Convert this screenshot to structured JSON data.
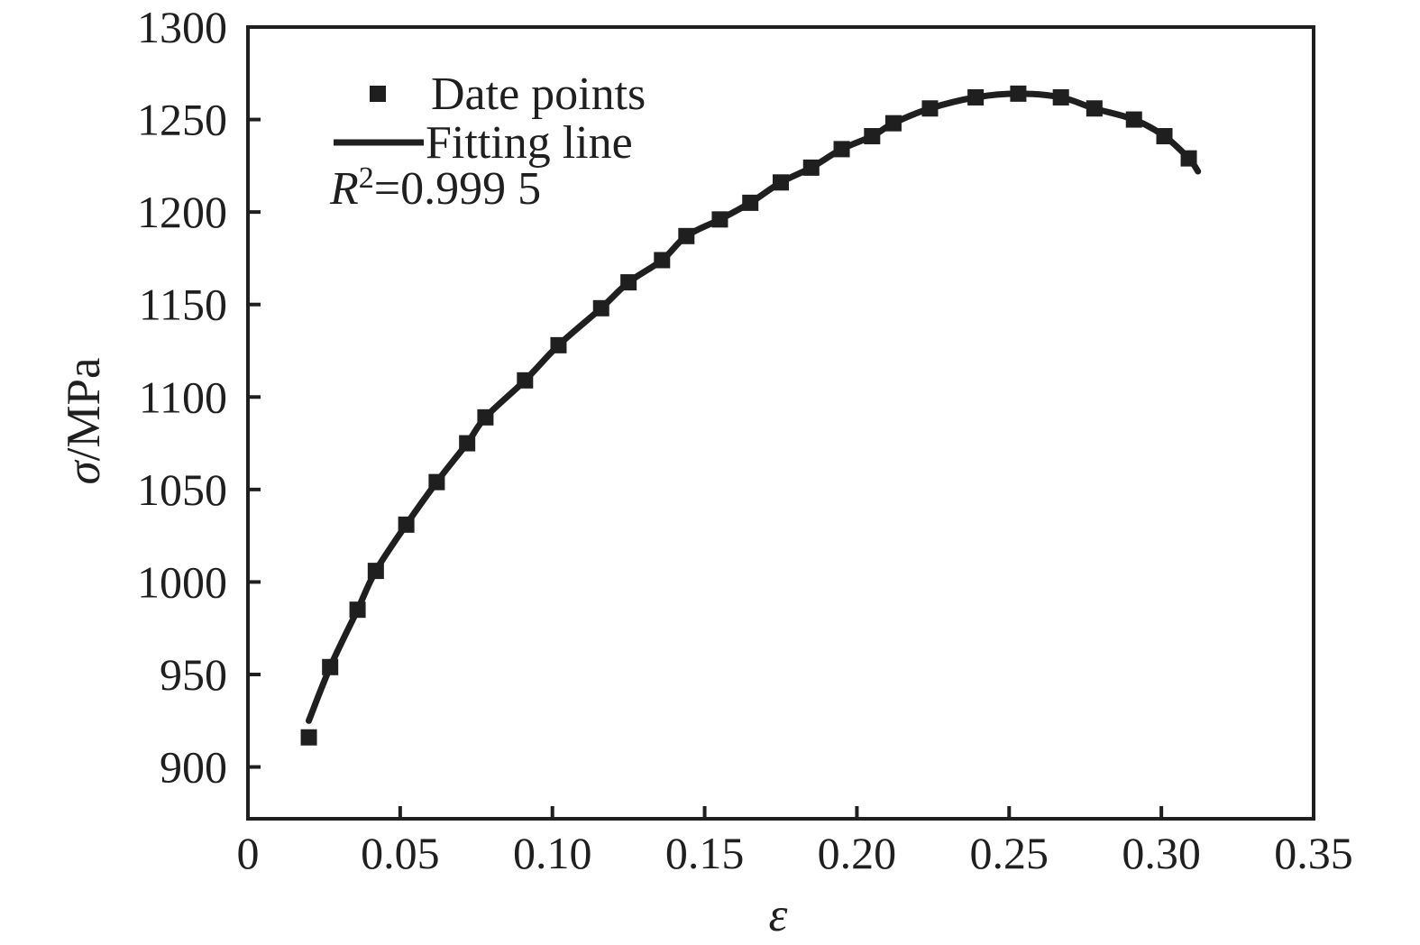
{
  "figure": {
    "background": "#ffffff",
    "ink_color": "#1f1f1f"
  },
  "legend": {
    "points_label": "Date points",
    "line_label": "Fitting line",
    "r_squared": {
      "base": "R",
      "exponent": "2",
      "value": "=0.999 5"
    }
  },
  "chart_data": {
    "type": "scatter",
    "title": "",
    "xlabel": "ε",
    "ylabel": "σ/MPa",
    "ylabel_parts": {
      "symbol": "σ",
      "unit": "/MPa"
    },
    "xlim": [
      0,
      0.35
    ],
    "ylim": [
      872,
      1300
    ],
    "grid": false,
    "legend_position": "top-left-inside",
    "x_ticks": {
      "values": [
        0,
        0.05,
        0.1,
        0.15,
        0.2,
        0.25,
        0.3,
        0.35
      ],
      "labels": [
        "0",
        "0.05",
        "0.10",
        "0.15",
        "0.20",
        "0.25",
        "0.30",
        "0.35"
      ]
    },
    "y_ticks": {
      "values": [
        900,
        950,
        1000,
        1050,
        1100,
        1150,
        1200,
        1250,
        1300
      ],
      "labels": [
        "900",
        "950",
        "1000",
        "1050",
        "1100",
        "1150",
        "1200",
        "1250",
        "1300"
      ]
    },
    "annotation": "R²=0.999 5",
    "series": [
      {
        "name": "Date points",
        "type": "scatter",
        "marker": "square",
        "color": "#1f1f1f",
        "points": [
          [
            0.02,
            916
          ],
          [
            0.027,
            954
          ],
          [
            0.036,
            985
          ],
          [
            0.042,
            1006
          ],
          [
            0.052,
            1031
          ],
          [
            0.062,
            1054
          ],
          [
            0.072,
            1075
          ],
          [
            0.078,
            1089
          ],
          [
            0.091,
            1109
          ],
          [
            0.102,
            1128
          ],
          [
            0.116,
            1148
          ],
          [
            0.125,
            1162
          ],
          [
            0.136,
            1174
          ],
          [
            0.144,
            1187
          ],
          [
            0.155,
            1196
          ],
          [
            0.165,
            1205
          ],
          [
            0.175,
            1216
          ],
          [
            0.185,
            1224
          ],
          [
            0.195,
            1234
          ],
          [
            0.205,
            1241
          ],
          [
            0.212,
            1248
          ],
          [
            0.224,
            1256
          ],
          [
            0.239,
            1262
          ],
          [
            0.253,
            1264
          ],
          [
            0.267,
            1262
          ],
          [
            0.278,
            1256
          ],
          [
            0.291,
            1250
          ],
          [
            0.301,
            1241
          ],
          [
            0.309,
            1229
          ]
        ]
      },
      {
        "name": "Fitting line",
        "type": "line",
        "color": "#1f1f1f",
        "points": [
          [
            0.02,
            925
          ],
          [
            0.027,
            954
          ],
          [
            0.036,
            985
          ],
          [
            0.042,
            1006
          ],
          [
            0.052,
            1031
          ],
          [
            0.062,
            1054
          ],
          [
            0.072,
            1075
          ],
          [
            0.078,
            1089
          ],
          [
            0.091,
            1109
          ],
          [
            0.102,
            1128
          ],
          [
            0.116,
            1148
          ],
          [
            0.125,
            1162
          ],
          [
            0.136,
            1174
          ],
          [
            0.144,
            1187
          ],
          [
            0.155,
            1196
          ],
          [
            0.165,
            1205
          ],
          [
            0.175,
            1216
          ],
          [
            0.185,
            1224
          ],
          [
            0.195,
            1234
          ],
          [
            0.205,
            1241
          ],
          [
            0.212,
            1248
          ],
          [
            0.224,
            1256
          ],
          [
            0.239,
            1262
          ],
          [
            0.253,
            1264
          ],
          [
            0.267,
            1262
          ],
          [
            0.278,
            1256
          ],
          [
            0.291,
            1250
          ],
          [
            0.301,
            1241
          ],
          [
            0.309,
            1229
          ],
          [
            0.312,
            1222
          ]
        ]
      }
    ]
  }
}
